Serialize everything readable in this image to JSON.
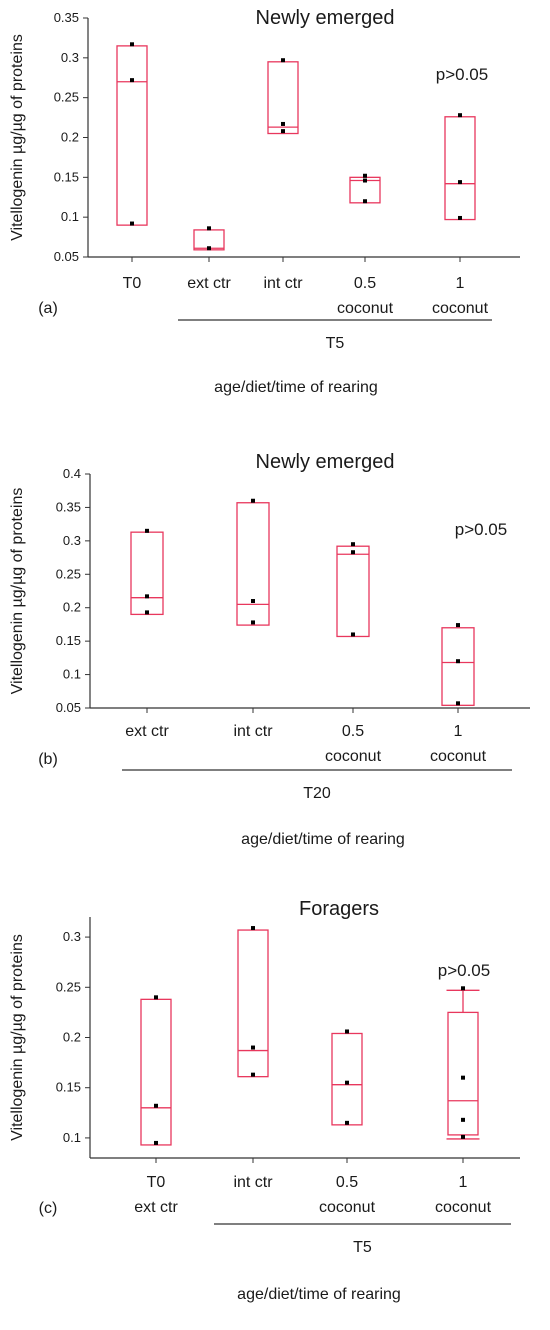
{
  "chart_data": [
    {
      "type": "box",
      "panel_label": "(a)",
      "title": "Newly emerged",
      "ylabel": "Vitellogenin µg/µg of proteins",
      "xlabel": "age/diet/time of rearing",
      "annotation": "p>0.05",
      "ylim": [
        0.05,
        0.35
      ],
      "yticks": [
        "0.05",
        "0.1",
        "0.15",
        "0.2",
        "0.25",
        "0.3",
        "0.35"
      ],
      "groups": [
        {
          "label": "T5",
          "categories": [
            1,
            2,
            3,
            4
          ]
        }
      ],
      "categories": [
        {
          "line1": "T0",
          "line2": "",
          "box": {
            "low": 0.09,
            "median": 0.27,
            "high": 0.315
          },
          "points": [
            0.092,
            0.272,
            0.317
          ]
        },
        {
          "line1": "ext ctr",
          "line2": "",
          "box": {
            "low": 0.059,
            "median": 0.061,
            "high": 0.084
          },
          "points": [
            0.061,
            0.086
          ]
        },
        {
          "line1": "int ctr",
          "line2": "",
          "box": {
            "low": 0.205,
            "median": 0.213,
            "high": 0.295
          },
          "points": [
            0.208,
            0.217,
            0.297
          ]
        },
        {
          "line1": "0.5",
          "line2": "coconut",
          "box": {
            "low": 0.118,
            "median": 0.146,
            "high": 0.15
          },
          "points": [
            0.12,
            0.146,
            0.152
          ]
        },
        {
          "line1": "1",
          "line2": "coconut",
          "box": {
            "low": 0.097,
            "median": 0.142,
            "high": 0.226
          },
          "points": [
            0.099,
            0.144,
            0.228
          ]
        }
      ]
    },
    {
      "type": "box",
      "panel_label": "(b)",
      "title": "Newly emerged",
      "ylabel": "Vitellogenin µg/µg of proteins",
      "xlabel": "age/diet/time of rearing",
      "annotation": "p>0.05",
      "ylim": [
        0.05,
        0.4
      ],
      "yticks": [
        "0.05",
        "0.1",
        "0.15",
        "0.2",
        "0.25",
        "0.3",
        "0.35",
        "0.4"
      ],
      "groups": [
        {
          "label": "T20",
          "categories": [
            0,
            1,
            2,
            3
          ]
        }
      ],
      "categories": [
        {
          "line1": "ext ctr",
          "line2": "",
          "box": {
            "low": 0.19,
            "median": 0.215,
            "high": 0.313
          },
          "points": [
            0.193,
            0.217,
            0.315
          ]
        },
        {
          "line1": "int ctr",
          "line2": "",
          "box": {
            "low": 0.174,
            "median": 0.205,
            "high": 0.357
          },
          "points": [
            0.178,
            0.21,
            0.36
          ]
        },
        {
          "line1": "0.5",
          "line2": "coconut",
          "box": {
            "low": 0.157,
            "median": 0.28,
            "high": 0.292
          },
          "points": [
            0.16,
            0.283,
            0.295
          ]
        },
        {
          "line1": "1",
          "line2": "coconut",
          "box": {
            "low": 0.054,
            "median": 0.118,
            "high": 0.17
          },
          "points": [
            0.057,
            0.12,
            0.174
          ]
        }
      ]
    },
    {
      "type": "box",
      "panel_label": "(c)",
      "title": "Foragers",
      "ylabel": "Vitellogenin µg/µg of proteins",
      "xlabel": "age/diet/time of rearing",
      "annotation": "p>0.05",
      "ylim": [
        0.08,
        0.32
      ],
      "yticks": [
        "0.1",
        "0.15",
        "0.2",
        "0.25",
        "0.3"
      ],
      "groups": [
        {
          "label": "T5",
          "categories": [
            1,
            2,
            3
          ]
        }
      ],
      "categories": [
        {
          "line1": "T0",
          "line2": "ext ctr",
          "box": {
            "low": 0.093,
            "median": 0.13,
            "high": 0.238
          },
          "points": [
            0.095,
            0.132,
            0.24
          ]
        },
        {
          "line1": "int ctr",
          "line2": "",
          "box": {
            "low": 0.161,
            "median": 0.187,
            "high": 0.307
          },
          "points": [
            0.163,
            0.19,
            0.309
          ]
        },
        {
          "line1": "0.5",
          "line2": "coconut",
          "box": {
            "low": 0.113,
            "median": 0.153,
            "high": 0.204
          },
          "points": [
            0.115,
            0.155,
            0.206
          ]
        },
        {
          "line1": "1",
          "line2": "coconut",
          "box": {
            "low": 0.103,
            "median": 0.137,
            "high": 0.225
          },
          "whisker": {
            "low": 0.099,
            "high": 0.247
          },
          "points": [
            0.101,
            0.118,
            0.16,
            0.249
          ]
        }
      ]
    }
  ],
  "colors": {
    "box": "#e8375d",
    "point": "#000000",
    "axis": "#333333",
    "text": "#1a1a1a"
  }
}
